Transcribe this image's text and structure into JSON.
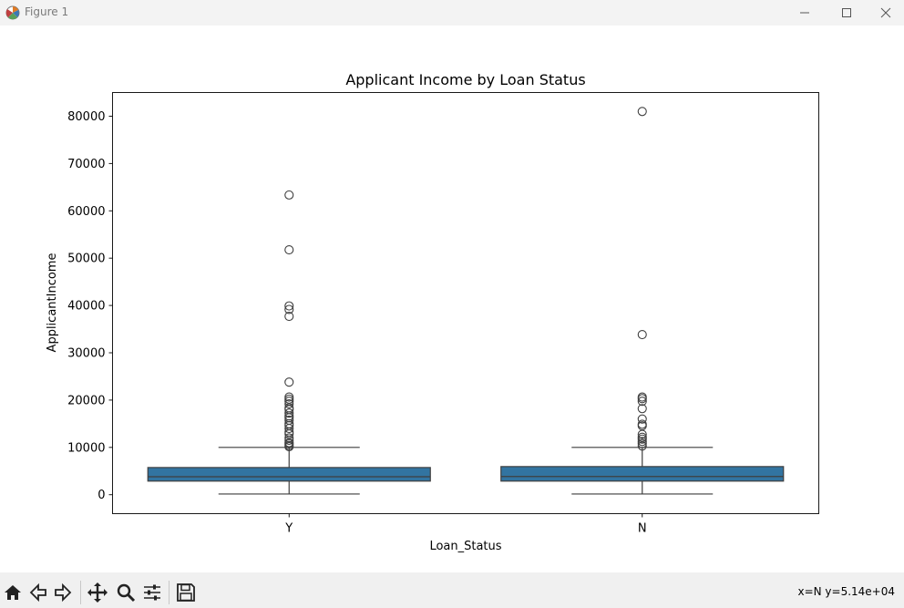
{
  "window": {
    "title": "Figure 1",
    "icons": [
      "matplotlib-icon",
      "minimize-icon",
      "maximize-icon",
      "close-icon"
    ]
  },
  "toolbar": {
    "tools": [
      "home-icon",
      "back-icon",
      "forward-icon",
      "pan-icon",
      "zoom-icon",
      "configure-icon",
      "save-icon"
    ],
    "coords": "x=N y=5.14e+04"
  },
  "colors": {
    "box_fill": "#3274a1",
    "line": "#3f3f3f",
    "frame": "#000000"
  },
  "chart_data": {
    "type": "box",
    "title": "Applicant Income by Loan Status",
    "xlabel": "Loan_Status",
    "ylabel": "ApplicantIncome",
    "categories": [
      "Y",
      "N"
    ],
    "ylim": [
      -4000,
      85000
    ],
    "yticks": [
      0,
      10000,
      20000,
      30000,
      40000,
      50000,
      60000,
      70000,
      80000
    ],
    "ytick_labels": [
      "0",
      "10000",
      "20000",
      "30000",
      "40000",
      "50000",
      "60000",
      "70000",
      "80000"
    ],
    "grid": false,
    "legend": "none",
    "boxes": [
      {
        "category": "Y",
        "whisker_low": 150,
        "q1": 2880,
        "median": 3800,
        "q3": 5750,
        "whisker_high": 10000,
        "outliers": [
          10150,
          10400,
          10750,
          11000,
          11500,
          12000,
          12850,
          13250,
          14000,
          14600,
          15000,
          15750,
          16250,
          16650,
          17250,
          18000,
          18350,
          19200,
          19750,
          20200,
          20650,
          23800,
          37700,
          39150,
          39900,
          51750,
          63350
        ]
      },
      {
        "category": "N",
        "whisker_low": 150,
        "q1": 2880,
        "median": 3850,
        "q3": 5950,
        "whisker_high": 10000,
        "outliers": [
          10300,
          10800,
          11250,
          11750,
          12150,
          12750,
          14550,
          14900,
          16000,
          18200,
          19750,
          20300,
          20650,
          33850,
          81000
        ]
      }
    ]
  }
}
